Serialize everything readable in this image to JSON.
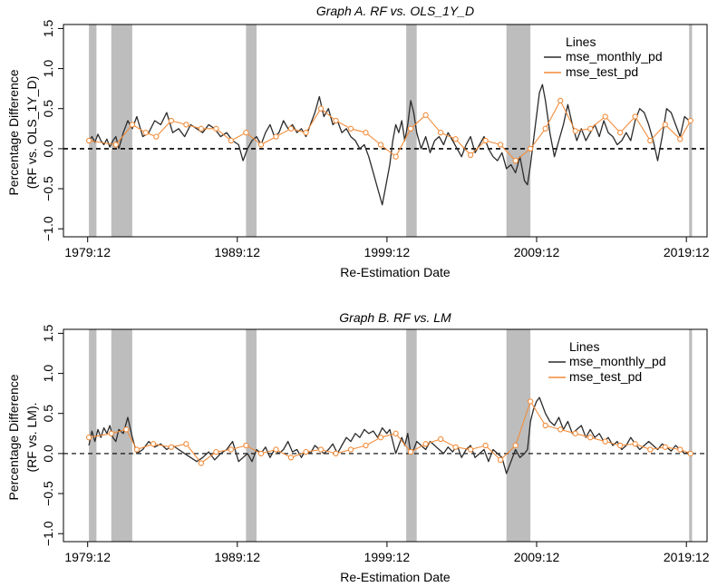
{
  "colors": {
    "monthly": "#2b2b2b",
    "test": "#f28c3a",
    "recession": "#bdbdbd",
    "zero": "#000000"
  },
  "recessions": [
    [
      1980.0,
      1980.5
    ],
    [
      1981.5,
      1982.9
    ],
    [
      1990.5,
      1991.2
    ],
    [
      2001.2,
      2001.9
    ],
    [
      2007.9,
      2009.5
    ],
    [
      2020.1,
      2020.3
    ]
  ],
  "chart_data": [
    {
      "type": "line",
      "title": "Graph A. RF vs. OLS_1Y_D",
      "xlabel": "Re-Estimation Date",
      "ylabel": [
        "Percentage Difference",
        "(RF vs. OLS_1Y_D)"
      ],
      "xlim": [
        1978.3,
        2021.3
      ],
      "ylim": [
        -1.1,
        1.55
      ],
      "xticks": [
        1979.917,
        1989.917,
        1999.917,
        2009.917,
        2019.917
      ],
      "xtick_labels": [
        "1979:12",
        "1989:12",
        "1999:12",
        "2009:12",
        "2019:12"
      ],
      "yticks": [
        -1.0,
        -0.5,
        0.0,
        0.5,
        1.0,
        1.5
      ],
      "ytick_labels": [
        "−1.0",
        "−0.5",
        "0.0",
        "0.5",
        "1.0",
        "1.5"
      ],
      "grid": false,
      "zero_line": 0,
      "zero_line_style": "dashed",
      "legend": {
        "title": "Lines",
        "position": "top-right",
        "entries": [
          "mse_monthly_pd",
          "mse_test_pd"
        ]
      },
      "series": [
        {
          "name": "mse_monthly_pd",
          "style": "line",
          "x": [
            1980.0,
            1980.2,
            1980.4,
            1980.6,
            1980.8,
            1981.0,
            1981.2,
            1981.4,
            1981.6,
            1981.8,
            1982.0,
            1982.3,
            1982.6,
            1982.9,
            1983.2,
            1983.6,
            1984.0,
            1984.4,
            1984.8,
            1985.2,
            1985.6,
            1986.0,
            1986.4,
            1986.8,
            1987.2,
            1987.6,
            1988.0,
            1988.4,
            1988.8,
            1989.2,
            1989.6,
            1990.0,
            1990.3,
            1990.6,
            1990.9,
            1991.2,
            1991.5,
            1991.8,
            1992.1,
            1992.4,
            1992.7,
            1993.0,
            1993.3,
            1993.6,
            1993.9,
            1994.2,
            1994.5,
            1994.8,
            1995.1,
            1995.4,
            1995.7,
            1996.0,
            1996.3,
            1996.6,
            1996.9,
            1997.2,
            1997.5,
            1997.8,
            1998.1,
            1998.4,
            1998.7,
            1999.0,
            1999.3,
            1999.6,
            1999.9,
            2000.1,
            2000.3,
            2000.5,
            2000.7,
            2000.9,
            2001.1,
            2001.3,
            2001.5,
            2001.7,
            2001.9,
            2002.2,
            2002.5,
            2002.8,
            2003.1,
            2003.4,
            2003.7,
            2004.0,
            2004.3,
            2004.6,
            2004.9,
            2005.2,
            2005.5,
            2005.8,
            2006.1,
            2006.4,
            2006.7,
            2007.0,
            2007.3,
            2007.6,
            2007.9,
            2008.2,
            2008.5,
            2008.8,
            2009.1,
            2009.3,
            2009.5,
            2009.7,
            2009.9,
            2010.1,
            2010.3,
            2010.5,
            2010.8,
            2011.1,
            2011.4,
            2011.7,
            2012.0,
            2012.3,
            2012.6,
            2012.9,
            2013.2,
            2013.5,
            2013.8,
            2014.1,
            2014.4,
            2014.7,
            2015.0,
            2015.3,
            2015.6,
            2015.9,
            2016.2,
            2016.5,
            2016.8,
            2017.1,
            2017.4,
            2017.7,
            2018.0,
            2018.3,
            2018.6,
            2018.9,
            2019.2,
            2019.5,
            2019.8,
            2020.1
          ],
          "y": [
            0.1,
            0.15,
            0.08,
            0.18,
            0.1,
            0.05,
            0.12,
            0.02,
            0.1,
            0.15,
            0.0,
            0.2,
            0.35,
            0.25,
            0.4,
            0.15,
            0.2,
            0.35,
            0.3,
            0.45,
            0.2,
            0.25,
            0.15,
            0.3,
            0.25,
            0.2,
            0.3,
            0.25,
            0.15,
            0.2,
            0.1,
            0.05,
            -0.15,
            0.0,
            0.1,
            0.15,
            0.05,
            0.2,
            0.3,
            0.15,
            0.2,
            0.35,
            0.25,
            0.3,
            0.2,
            0.25,
            0.15,
            0.3,
            0.45,
            0.65,
            0.4,
            0.5,
            0.3,
            0.35,
            0.2,
            0.25,
            0.15,
            0.1,
            0.0,
            0.05,
            -0.1,
            -0.3,
            -0.5,
            -0.7,
            -0.4,
            -0.2,
            0.1,
            0.3,
            0.2,
            0.35,
            0.1,
            0.3,
            0.6,
            0.45,
            0.2,
            0.0,
            0.15,
            -0.05,
            0.1,
            0.15,
            0.05,
            0.2,
            0.1,
            0.0,
            -0.1,
            0.05,
            0.15,
            -0.05,
            0.05,
            0.15,
            0.0,
            -0.1,
            -0.15,
            -0.05,
            -0.25,
            -0.2,
            -0.3,
            -0.1,
            -0.4,
            -0.45,
            -0.2,
            0.1,
            0.4,
            0.7,
            0.8,
            0.6,
            0.2,
            -0.1,
            0.1,
            0.3,
            0.55,
            0.3,
            0.1,
            0.25,
            0.1,
            0.2,
            0.3,
            0.15,
            0.35,
            0.2,
            0.15,
            0.05,
            0.1,
            0.2,
            0.1,
            0.35,
            0.5,
            0.45,
            0.3,
            0.1,
            -0.15,
            0.15,
            0.5,
            0.45,
            0.3,
            0.15,
            0.4,
            0.35
          ]
        },
        {
          "name": "mse_test_pd",
          "style": "line-marker",
          "x": [
            1980.0,
            1981.8,
            1982.9,
            1983.8,
            1984.5,
            1985.5,
            1986.5,
            1987.5,
            1988.5,
            1989.5,
            1990.5,
            1991.5,
            1992.5,
            1993.5,
            1994.5,
            1995.5,
            1996.5,
            1997.5,
            1998.5,
            1999.5,
            2000.5,
            2001.5,
            2002.5,
            2003.5,
            2004.5,
            2005.5,
            2006.5,
            2007.5,
            2008.5,
            2009.5,
            2010.5,
            2011.5,
            2012.5,
            2013.5,
            2014.5,
            2015.5,
            2016.5,
            2017.5,
            2018.5,
            2019.5,
            2020.2
          ],
          "y": [
            0.1,
            0.05,
            0.3,
            0.2,
            0.15,
            0.35,
            0.3,
            0.25,
            0.25,
            0.1,
            0.2,
            0.05,
            0.15,
            0.25,
            0.2,
            0.5,
            0.35,
            0.25,
            0.2,
            0.05,
            -0.1,
            0.25,
            0.42,
            0.2,
            0.12,
            -0.08,
            0.1,
            0.05,
            -0.15,
            0.0,
            0.25,
            0.6,
            0.22,
            0.25,
            0.4,
            0.2,
            0.4,
            0.1,
            0.3,
            0.12,
            0.35
          ]
        }
      ]
    },
    {
      "type": "line",
      "title": "Graph B. RF vs. LM",
      "xlabel": "Re-Estimation Date",
      "ylabel": [
        "Percentage Difference",
        "(RF vs. LM)."
      ],
      "xlim": [
        1978.3,
        2021.3
      ],
      "ylim": [
        -1.1,
        1.55
      ],
      "xticks": [
        1979.917,
        1989.917,
        1999.917,
        2009.917,
        2019.917
      ],
      "xtick_labels": [
        "1979:12",
        "1989:12",
        "1999:12",
        "2009:12",
        "2019:12"
      ],
      "yticks": [
        -1.0,
        -0.5,
        0.0,
        0.5,
        1.0,
        1.5
      ],
      "ytick_labels": [
        "−1.0",
        "−0.5",
        "0.0",
        "0.5",
        "1.0",
        "1.5"
      ],
      "grid": false,
      "zero_line": 0,
      "zero_line_style": "dashed",
      "legend": {
        "title": "Lines",
        "position": "top-right",
        "entries": [
          "mse_monthly_pd",
          "mse_test_pd"
        ]
      },
      "series": [
        {
          "name": "mse_monthly_pd",
          "style": "line",
          "x": [
            1980.0,
            1980.2,
            1980.4,
            1980.6,
            1980.8,
            1981.0,
            1981.2,
            1981.4,
            1981.6,
            1981.8,
            1982.0,
            1982.3,
            1982.6,
            1982.9,
            1983.2,
            1983.6,
            1984.0,
            1984.4,
            1984.8,
            1985.2,
            1985.6,
            1986.0,
            1986.4,
            1986.8,
            1987.2,
            1987.6,
            1988.0,
            1988.4,
            1988.8,
            1989.2,
            1989.6,
            1990.0,
            1990.3,
            1990.6,
            1990.9,
            1991.2,
            1991.5,
            1991.8,
            1992.1,
            1992.4,
            1992.7,
            1993.0,
            1993.3,
            1993.6,
            1993.9,
            1994.2,
            1994.5,
            1994.8,
            1995.1,
            1995.4,
            1995.7,
            1996.0,
            1996.3,
            1996.6,
            1996.9,
            1997.2,
            1997.5,
            1997.8,
            1998.1,
            1998.4,
            1998.7,
            1999.0,
            1999.3,
            1999.6,
            1999.9,
            2000.1,
            2000.3,
            2000.5,
            2000.7,
            2000.9,
            2001.1,
            2001.3,
            2001.5,
            2001.7,
            2001.9,
            2002.2,
            2002.5,
            2002.8,
            2003.1,
            2003.4,
            2003.7,
            2004.0,
            2004.3,
            2004.6,
            2004.9,
            2005.2,
            2005.5,
            2005.8,
            2006.1,
            2006.4,
            2006.7,
            2007.0,
            2007.3,
            2007.6,
            2007.9,
            2008.2,
            2008.5,
            2008.8,
            2009.1,
            2009.3,
            2009.5,
            2009.7,
            2009.9,
            2010.1,
            2010.3,
            2010.5,
            2010.8,
            2011.1,
            2011.4,
            2011.7,
            2012.0,
            2012.3,
            2012.6,
            2012.9,
            2013.2,
            2013.5,
            2013.8,
            2014.1,
            2014.4,
            2014.7,
            2015.0,
            2015.3,
            2015.6,
            2015.9,
            2016.2,
            2016.5,
            2016.8,
            2017.1,
            2017.4,
            2017.7,
            2018.0,
            2018.3,
            2018.6,
            2018.9,
            2019.2,
            2019.5,
            2019.8,
            2020.1
          ],
          "y": [
            0.1,
            0.28,
            0.15,
            0.3,
            0.2,
            0.32,
            0.25,
            0.35,
            0.2,
            0.15,
            0.3,
            0.25,
            0.45,
            0.2,
            0.0,
            0.05,
            0.15,
            0.08,
            0.12,
            0.05,
            0.1,
            0.05,
            0.0,
            -0.05,
            -0.1,
            -0.05,
            0.02,
            -0.08,
            0.0,
            0.05,
            0.15,
            -0.1,
            -0.05,
            0.0,
            -0.1,
            0.05,
            0.0,
            0.08,
            -0.05,
            0.05,
            0.0,
            0.05,
            0.15,
            0.02,
            0.05,
            -0.05,
            0.05,
            0.0,
            0.1,
            0.05,
            0.0,
            0.05,
            0.12,
            0.0,
            0.1,
            0.2,
            0.15,
            0.25,
            0.2,
            0.3,
            0.25,
            0.28,
            0.2,
            0.32,
            0.25,
            0.3,
            0.15,
            0.0,
            0.1,
            0.2,
            0.1,
            0.25,
            0.0,
            0.05,
            0.15,
            0.1,
            0.05,
            0.15,
            0.1,
            0.05,
            0.0,
            0.08,
            0.02,
            0.1,
            -0.05,
            0.05,
            0.1,
            -0.05,
            0.0,
            0.05,
            -0.1,
            0.05,
            0.0,
            -0.05,
            -0.25,
            -0.1,
            0.05,
            -0.05,
            0.0,
            0.05,
            0.4,
            0.55,
            0.65,
            0.7,
            0.6,
            0.5,
            0.4,
            0.35,
            0.45,
            0.3,
            0.4,
            0.25,
            0.3,
            0.35,
            0.2,
            0.3,
            0.2,
            0.25,
            0.15,
            0.2,
            0.1,
            0.15,
            0.05,
            0.1,
            0.2,
            0.12,
            0.05,
            0.1,
            0.15,
            0.1,
            0.05,
            0.12,
            0.08,
            0.03,
            0.1,
            0.05,
            0.0,
            0.02
          ]
        },
        {
          "name": "mse_test_pd",
          "style": "line-marker",
          "x": [
            1980.0,
            1981.5,
            1982.5,
            1983.2,
            1984.3,
            1985.5,
            1986.5,
            1987.5,
            1988.5,
            1989.5,
            1990.5,
            1991.5,
            1992.5,
            1993.5,
            1994.5,
            1995.5,
            1996.5,
            1997.5,
            1998.5,
            1999.5,
            2000.5,
            2001.5,
            2002.5,
            2003.5,
            2004.5,
            2005.5,
            2006.5,
            2007.5,
            2008.5,
            2009.5,
            2010.5,
            2011.5,
            2012.5,
            2013.5,
            2014.5,
            2015.5,
            2016.5,
            2017.5,
            2018.5,
            2019.5,
            2020.2
          ],
          "y": [
            0.2,
            0.25,
            0.3,
            0.05,
            0.12,
            0.08,
            0.12,
            -0.12,
            0.02,
            0.05,
            0.1,
            0.0,
            0.05,
            -0.05,
            0.02,
            0.05,
            0.0,
            0.05,
            0.1,
            0.2,
            0.25,
            0.02,
            0.12,
            0.18,
            0.08,
            0.05,
            0.1,
            -0.08,
            0.1,
            0.65,
            0.35,
            0.3,
            0.25,
            0.2,
            0.15,
            0.1,
            0.12,
            0.05,
            0.08,
            0.05,
            0.0
          ]
        }
      ]
    }
  ]
}
